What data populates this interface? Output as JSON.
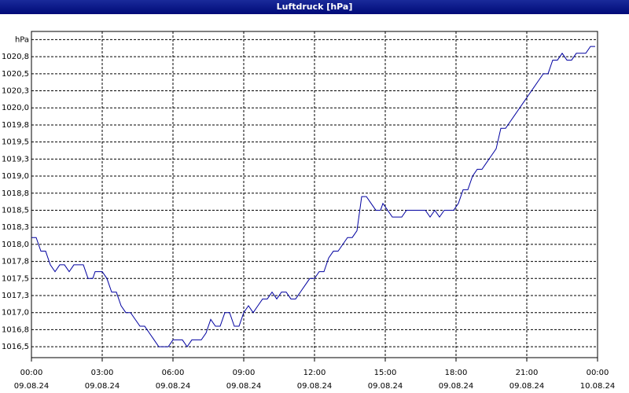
{
  "chart_data": {
    "type": "line",
    "title": "Luftdruck [hPa]",
    "color": "#0000a0",
    "grid": true,
    "xlim": [
      0,
      24
    ],
    "xticks": [
      {
        "value": 0,
        "label": "00:00\n09.08.24"
      },
      {
        "value": 3,
        "label": "03:00\n09.08.24"
      },
      {
        "value": 6,
        "label": "06:00\n09.08.24"
      },
      {
        "value": 9,
        "label": "09:00\n09.08.24"
      },
      {
        "value": 12,
        "label": "12:00\n09.08.24"
      },
      {
        "value": 15,
        "label": "15:00\n09.08.24"
      },
      {
        "value": 18,
        "label": "18:00\n09.08.24"
      },
      {
        "value": 21,
        "label": "21:00\n09.08.24"
      },
      {
        "value": 24,
        "label": "00:00\n10.08.24"
      }
    ],
    "ylim": [
      1016.34,
      1021.12
    ],
    "yticks": [
      {
        "value": 1016.5,
        "label": "1016,5"
      },
      {
        "value": 1016.75,
        "label": "1016,8"
      },
      {
        "value": 1017.0,
        "label": "1017,0"
      },
      {
        "value": 1017.25,
        "label": "1017,3"
      },
      {
        "value": 1017.5,
        "label": "1017,5"
      },
      {
        "value": 1017.75,
        "label": "1017,8"
      },
      {
        "value": 1018.0,
        "label": "1018,0"
      },
      {
        "value": 1018.25,
        "label": "1018,3"
      },
      {
        "value": 1018.5,
        "label": "1018,5"
      },
      {
        "value": 1018.75,
        "label": "1018,8"
      },
      {
        "value": 1019.0,
        "label": "1019,0"
      },
      {
        "value": 1019.25,
        "label": "1019,3"
      },
      {
        "value": 1019.5,
        "label": "1019,5"
      },
      {
        "value": 1019.75,
        "label": "1019,8"
      },
      {
        "value": 1020.0,
        "label": "1020,0"
      },
      {
        "value": 1020.25,
        "label": "1020,3"
      },
      {
        "value": 1020.5,
        "label": "1020,5"
      },
      {
        "value": 1020.75,
        "label": "1020,8"
      },
      {
        "value": 1021.0,
        "label": "hPa"
      }
    ],
    "x": [
      0,
      0.2,
      0.4,
      0.6,
      0.8,
      1.0,
      1.2,
      1.4,
      1.6,
      1.8,
      2.2,
      2.4,
      2.6,
      2.7,
      3.0,
      3.2,
      3.4,
      3.6,
      3.8,
      4.0,
      4.2,
      4.4,
      4.6,
      4.8,
      5.0,
      5.2,
      5.4,
      5.8,
      6.0,
      6.4,
      6.6,
      6.8,
      7.2,
      7.4,
      7.6,
      7.8,
      8.0,
      8.2,
      8.4,
      8.6,
      8.8,
      9.0,
      9.2,
      9.4,
      9.6,
      9.8,
      10.0,
      10.2,
      10.4,
      10.6,
      10.8,
      11.0,
      11.2,
      11.4,
      11.6,
      11.8,
      12.0,
      12.2,
      12.4,
      12.6,
      12.8,
      13.0,
      13.2,
      13.4,
      13.6,
      13.8,
      14.0,
      14.2,
      14.4,
      14.6,
      14.8,
      14.9,
      15.1,
      15.3,
      15.5,
      15.7,
      15.9,
      16.7,
      16.9,
      17.1,
      17.3,
      17.5,
      17.9,
      18.1,
      18.3,
      18.5,
      18.7,
      18.9,
      19.1,
      19.3,
      19.5,
      19.7,
      19.9,
      20.1,
      20.3,
      20.5,
      20.7,
      20.9,
      21.1,
      21.3,
      21.5,
      21.7,
      21.9,
      22.1,
      22.3,
      22.5,
      22.7,
      22.9,
      23.1,
      23.3,
      23.5,
      23.7,
      23.9
    ],
    "values": [
      1018.1,
      1018.1,
      1017.9,
      1017.9,
      1017.7,
      1017.6,
      1017.7,
      1017.7,
      1017.6,
      1017.7,
      1017.7,
      1017.5,
      1017.5,
      1017.6,
      1017.6,
      1017.5,
      1017.3,
      1017.3,
      1017.1,
      1017.0,
      1017.0,
      1016.9,
      1016.8,
      1016.8,
      1016.7,
      1016.6,
      1016.5,
      1016.5,
      1016.6,
      1016.6,
      1016.5,
      1016.6,
      1016.6,
      1016.7,
      1016.9,
      1016.8,
      1016.8,
      1017.0,
      1017.0,
      1016.8,
      1016.8,
      1017.0,
      1017.1,
      1017.0,
      1017.1,
      1017.2,
      1017.2,
      1017.3,
      1017.2,
      1017.3,
      1017.3,
      1017.2,
      1017.2,
      1017.3,
      1017.4,
      1017.5,
      1017.5,
      1017.6,
      1017.6,
      1017.8,
      1017.9,
      1017.9,
      1018.0,
      1018.1,
      1018.1,
      1018.2,
      1018.7,
      1018.7,
      1018.6,
      1018.5,
      1018.5,
      1018.6,
      1018.5,
      1018.4,
      1018.4,
      1018.4,
      1018.5,
      1018.5,
      1018.4,
      1018.5,
      1018.4,
      1018.5,
      1018.5,
      1018.6,
      1018.8,
      1018.8,
      1019.0,
      1019.1,
      1019.1,
      1019.2,
      1019.3,
      1019.4,
      1019.7,
      1019.7,
      1019.8,
      1019.9,
      1020.0,
      1020.1,
      1020.2,
      1020.3,
      1020.4,
      1020.5,
      1020.5,
      1020.7,
      1020.7,
      1020.8,
      1020.7,
      1020.7,
      1020.8,
      1020.8,
      1020.8,
      1020.9,
      1020.9
    ]
  }
}
